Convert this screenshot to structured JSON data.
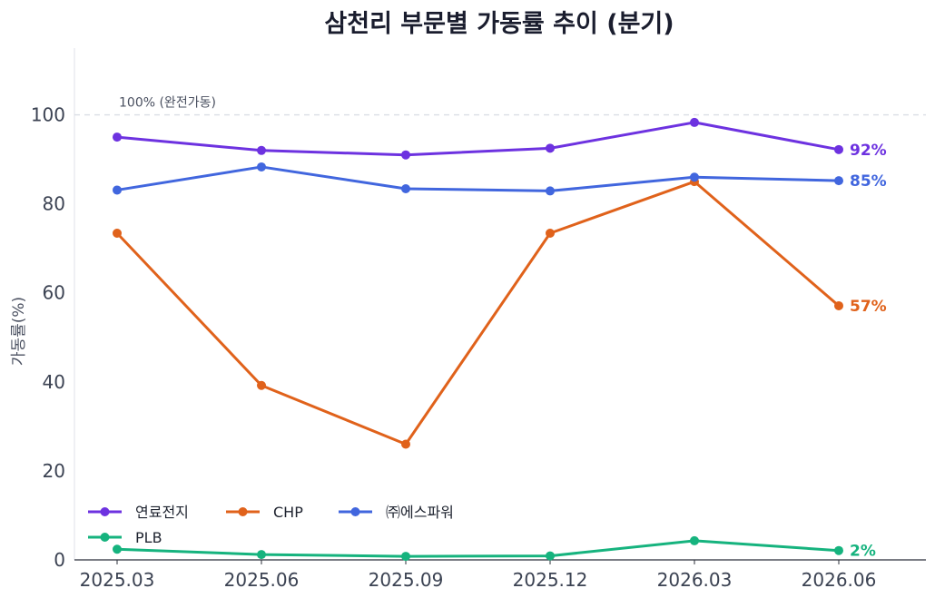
{
  "chart_data": {
    "type": "line",
    "title": "삼천리 부문별 가동률 추이 (분기)",
    "ylabel": "가동률(%)",
    "xlabel": "",
    "ylim": [
      0,
      115
    ],
    "yticks": [
      0,
      20,
      40,
      60,
      80,
      100
    ],
    "categories": [
      "2025.03",
      "2025.06",
      "2025.09",
      "2025.12",
      "2026.03",
      "2026.06"
    ],
    "reference_line": {
      "value": 100,
      "label": "100% (완전가동)"
    },
    "legend_position": "lower-left",
    "grid": false,
    "series": [
      {
        "name": "연료전지",
        "color": "#6d32e0",
        "values": [
          95.0,
          92.0,
          91.0,
          92.5,
          98.3,
          92.2
        ],
        "end_label": "92%"
      },
      {
        "name": "CHP",
        "color": "#e0621b",
        "values": [
          73.4,
          39.2,
          26.0,
          73.4,
          85.0,
          57.1
        ],
        "end_label": "57%"
      },
      {
        "name": "㈜에스파워",
        "color": "#4166de",
        "values": [
          83.1,
          88.3,
          83.4,
          82.9,
          86.0,
          85.2
        ],
        "end_label": "85%"
      },
      {
        "name": "PLB",
        "color": "#16b37e",
        "values": [
          2.4,
          1.2,
          0.8,
          0.9,
          4.3,
          2.1
        ],
        "end_label": "2%"
      }
    ]
  }
}
